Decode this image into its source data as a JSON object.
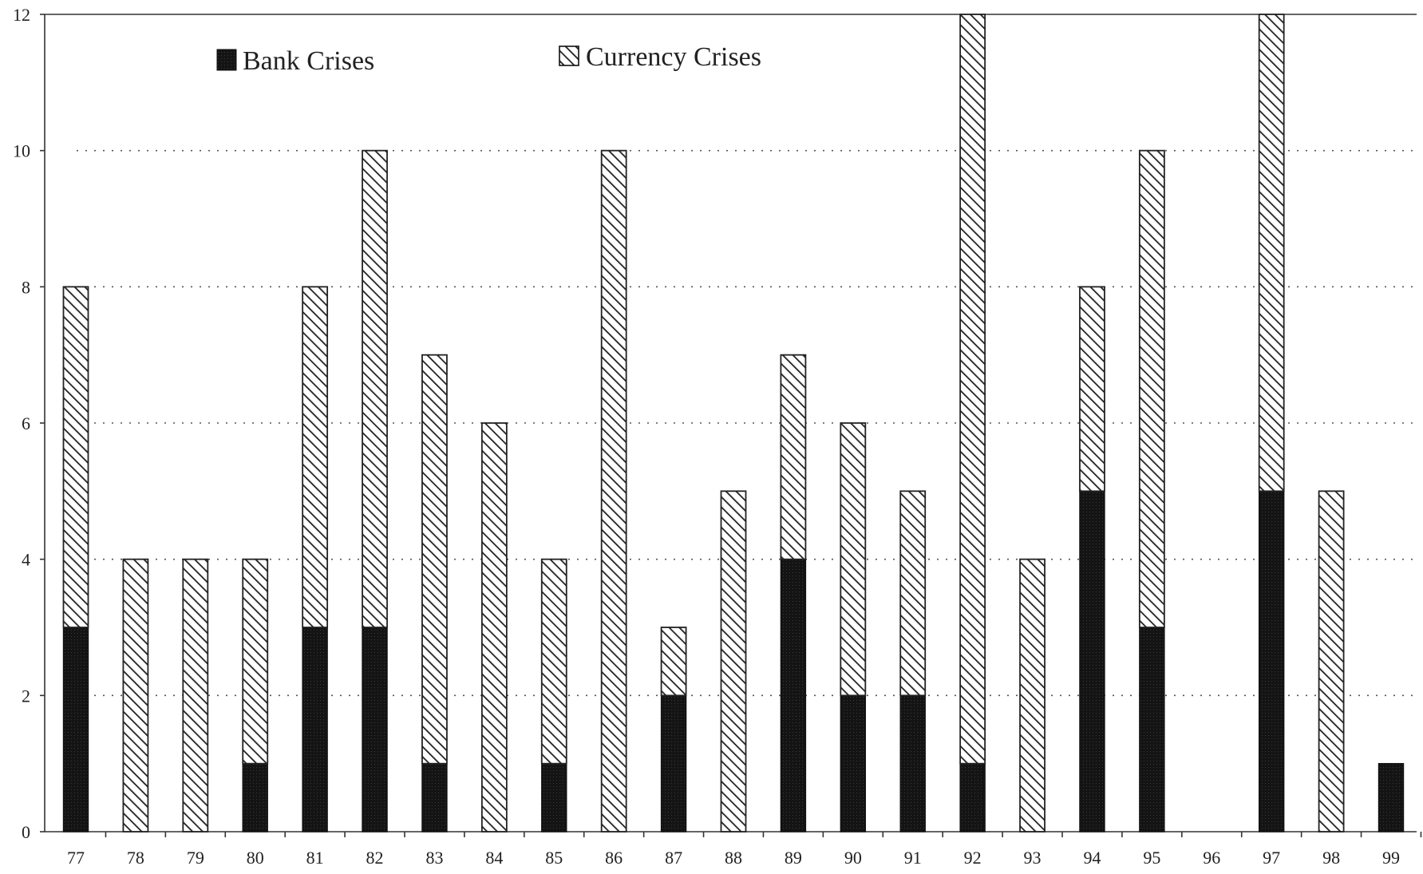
{
  "chart_data": {
    "type": "bar",
    "stacked": true,
    "title": "",
    "xlabel": "",
    "ylabel": "",
    "ylim": [
      0,
      12
    ],
    "yticks": [
      0,
      2,
      4,
      6,
      8,
      10,
      12
    ],
    "grid": "dotted horizontal",
    "legend_position": "top",
    "categories": [
      "77",
      "78",
      "79",
      "80",
      "81",
      "82",
      "83",
      "84",
      "85",
      "86",
      "87",
      "88",
      "89",
      "90",
      "91",
      "92",
      "93",
      "94",
      "95",
      "96",
      "97",
      "98",
      "99"
    ],
    "series": [
      {
        "name": "Bank Crises",
        "color": "#111111",
        "fill": "solid",
        "values": [
          3,
          0,
          0,
          1,
          3,
          3,
          1,
          0,
          1,
          0,
          2,
          0,
          4,
          2,
          2,
          1,
          0,
          5,
          3,
          0,
          5,
          0,
          1
        ]
      },
      {
        "name": "Currency Crises",
        "color": "#ffffff",
        "fill": "diagonal-hatch",
        "values": [
          5,
          4,
          4,
          3,
          5,
          7,
          6,
          6,
          3,
          10,
          1,
          5,
          3,
          4,
          3,
          11,
          4,
          3,
          7,
          0,
          7,
          5,
          0
        ]
      }
    ]
  }
}
